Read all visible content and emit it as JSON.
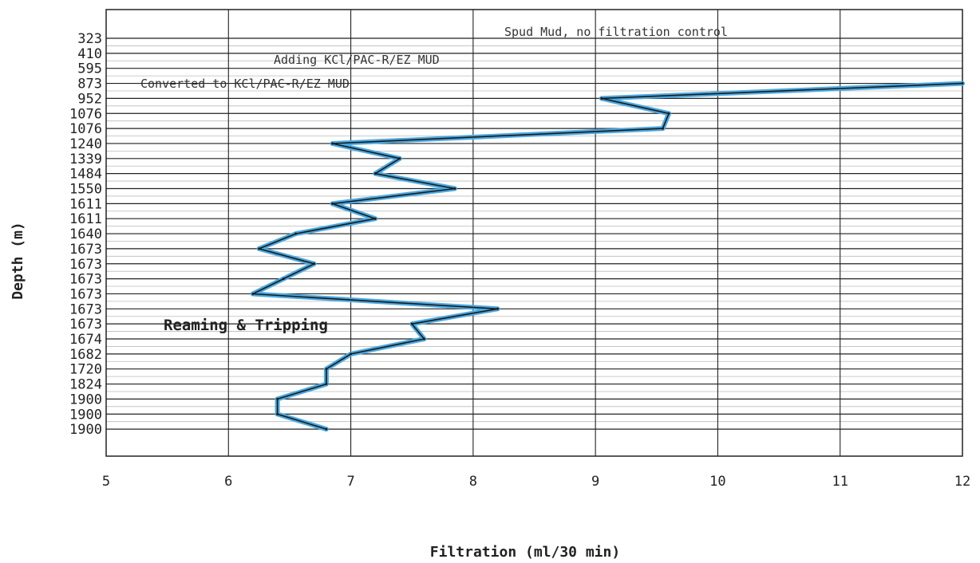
{
  "chart_data": {
    "type": "line",
    "xlabel": "Filtration (ml/30 min)",
    "ylabel": "Depth (m)",
    "xlim": [
      5,
      12
    ],
    "x_ticks": [
      "5",
      "6",
      "7",
      "8",
      "9",
      "10",
      "11",
      "12"
    ],
    "y_categories": [
      "323",
      "410",
      "595",
      "873",
      "952",
      "1076",
      "1076",
      "1240",
      "1339",
      "1484",
      "1550",
      "1611",
      "1611",
      "1640",
      "1673",
      "1673",
      "1673",
      "1673",
      "1673",
      "1673",
      "1674",
      "1682",
      "1720",
      "1824",
      "1900",
      "1900",
      "1900"
    ],
    "series": [
      {
        "points": [
          {
            "depth_index": 3,
            "x": 12.0
          },
          {
            "depth_index": 4,
            "x": 9.05
          },
          {
            "depth_index": 5,
            "x": 9.6
          },
          {
            "depth_index": 6,
            "x": 9.55
          },
          {
            "depth_index": 7,
            "x": 6.85
          },
          {
            "depth_index": 8,
            "x": 7.4
          },
          {
            "depth_index": 9,
            "x": 7.2
          },
          {
            "depth_index": 10,
            "x": 7.85
          },
          {
            "depth_index": 11,
            "x": 6.85
          },
          {
            "depth_index": 12,
            "x": 7.2
          },
          {
            "depth_index": 13,
            "x": 6.55
          },
          {
            "depth_index": 14,
            "x": 6.25
          },
          {
            "depth_index": 15,
            "x": 6.7
          },
          {
            "depth_index": 16,
            "x": 6.45
          },
          {
            "depth_index": 17,
            "x": 6.2
          },
          {
            "depth_index": 18,
            "x": 8.2
          },
          {
            "depth_index": 19,
            "x": 7.5
          },
          {
            "depth_index": 20,
            "x": 7.6
          },
          {
            "depth_index": 21,
            "x": 7.0
          },
          {
            "depth_index": 22,
            "x": 6.8
          },
          {
            "depth_index": 23,
            "x": 6.8
          },
          {
            "depth_index": 24,
            "x": 6.4
          },
          {
            "depth_index": 25,
            "x": 6.4
          },
          {
            "depth_index": 26,
            "x": 6.8
          }
        ],
        "color": "#4aa8e0",
        "outline_color": "#1a1a1a"
      }
    ],
    "annotations": [
      {
        "text": "Spud Mud, no filtration control"
      },
      {
        "text": "Adding KCl/PAC-R/EZ MUD"
      },
      {
        "text": "Converted to KCl/PAC-R/EZ MUD"
      },
      {
        "text": "Reaming & Tripping"
      }
    ],
    "grid": true
  }
}
